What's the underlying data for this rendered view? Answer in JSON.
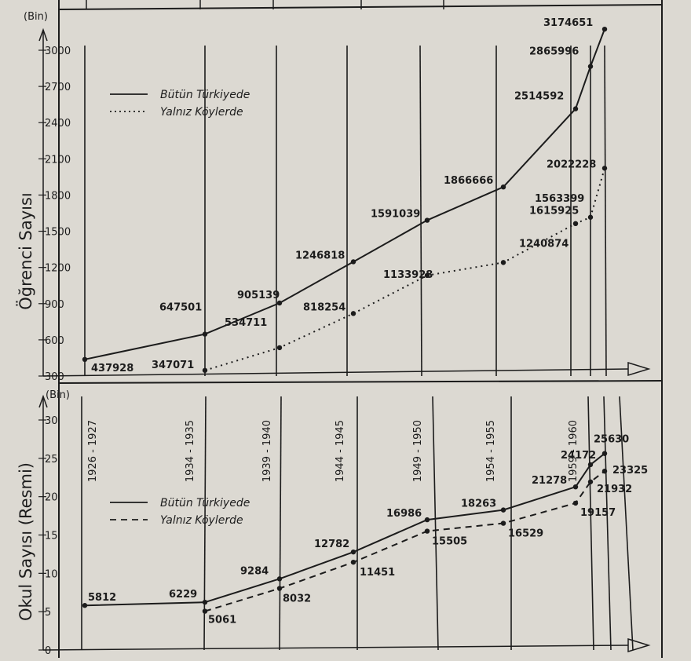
{
  "chart_data": [
    {
      "type": "line",
      "title": "",
      "unit_label": "(Bin)",
      "ylabel": "Öğrenci Sayısı",
      "ylim": [
        300,
        3000
      ],
      "y_ticks": [
        300,
        600,
        900,
        1200,
        1500,
        1800,
        2100,
        2400,
        2700,
        3000
      ],
      "grid": "vertical lines at periods",
      "legend": {
        "position": "top-left",
        "entries": [
          {
            "label": "Bütün Türkiyede",
            "style": "solid"
          },
          {
            "label": "Yalnız Köylerde",
            "style": "dotted"
          }
        ]
      },
      "series": [
        {
          "name": "Bütün Türkiyede",
          "style": "solid",
          "points": [
            {
              "x": 1926,
              "y": 437.928,
              "label": "437928"
            },
            {
              "x": 1934,
              "y": 647.501,
              "label": "647501"
            },
            {
              "x": 1939,
              "y": 905.139,
              "label": "905139"
            },
            {
              "x": 1944,
              "y": 1246.818,
              "label": "1246818"
            },
            {
              "x": 1949,
              "y": 1591.039,
              "label": "1591039"
            },
            {
              "x": 1954,
              "y": 1866.666,
              "label": "1866666"
            },
            {
              "x": 1959,
              "y": 2514.592,
              "label": "2514592"
            },
            {
              "x": 1960,
              "y": 2865.996,
              "label": "2865996"
            },
            {
              "x": 1961,
              "y": 3174.651,
              "label": "3174651"
            }
          ]
        },
        {
          "name": "Yalnız Köylerde",
          "style": "dotted",
          "points": [
            {
              "x": 1934,
              "y": 347.071,
              "label": "347071"
            },
            {
              "x": 1939,
              "y": 534.711,
              "label": "534711"
            },
            {
              "x": 1944,
              "y": 818.254,
              "label": "818254"
            },
            {
              "x": 1949,
              "y": 1133.928,
              "label": "1133928"
            },
            {
              "x": 1954,
              "y": 1240.874,
              "label": "1240874"
            },
            {
              "x": 1959,
              "y": 1563.399,
              "label": "1563399"
            },
            {
              "x": 1960,
              "y": 1615.925,
              "label": "1615925"
            },
            {
              "x": 1961,
              "y": 2022.228,
              "label": "2022228"
            }
          ]
        }
      ]
    },
    {
      "type": "line",
      "title": "",
      "unit_label": "(Bin)",
      "ylabel": "Okul Sayısı (Resmi)",
      "ylim": [
        0,
        30
      ],
      "y_ticks": [
        0,
        5,
        10,
        15,
        20,
        25,
        30
      ],
      "grid": "vertical lines at periods",
      "period_labels": [
        "1926 - 1927",
        "1934 - 1935",
        "1939 - 1940",
        "1944 - 1945",
        "1949 - 1950",
        "1954 - 1955",
        "1959 - 1960"
      ],
      "legend": {
        "position": "middle-left",
        "entries": [
          {
            "label": "Bütün Türkiyede",
            "style": "solid"
          },
          {
            "label": "Yalnız Köylerde",
            "style": "dashed"
          }
        ]
      },
      "series": [
        {
          "name": "Bütün Türkiyede",
          "style": "solid",
          "points": [
            {
              "x": 1926,
              "y": 5.812,
              "label": "5812"
            },
            {
              "x": 1934,
              "y": 6.229,
              "label": "6229"
            },
            {
              "x": 1939,
              "y": 9.284,
              "label": "9284"
            },
            {
              "x": 1944,
              "y": 12.782,
              "label": "12782"
            },
            {
              "x": 1949,
              "y": 16.986,
              "label": "16986"
            },
            {
              "x": 1954,
              "y": 18.263,
              "label": "18263"
            },
            {
              "x": 1959,
              "y": 21.278,
              "label": "21278"
            },
            {
              "x": 1960,
              "y": 24.172,
              "label": "24172"
            },
            {
              "x": 1961,
              "y": 25.63,
              "label": "25630"
            }
          ]
        },
        {
          "name": "Yalnız Köylerde",
          "style": "dashed",
          "points": [
            {
              "x": 1934,
              "y": 5.061,
              "label": "5061"
            },
            {
              "x": 1939,
              "y": 8.032,
              "label": "8032"
            },
            {
              "x": 1944,
              "y": 11.451,
              "label": "11451"
            },
            {
              "x": 1949,
              "y": 15.505,
              "label": "15505"
            },
            {
              "x": 1954,
              "y": 16.529,
              "label": "16529"
            },
            {
              "x": 1959,
              "y": 19.157,
              "label": "19157"
            },
            {
              "x": 1960,
              "y": 21.932,
              "label": "21932"
            },
            {
              "x": 1961,
              "y": 23.325,
              "label": "23325"
            }
          ]
        }
      ]
    }
  ],
  "colors": {
    "paper": "#dcd9d2",
    "ink": "#1c1c1c"
  }
}
